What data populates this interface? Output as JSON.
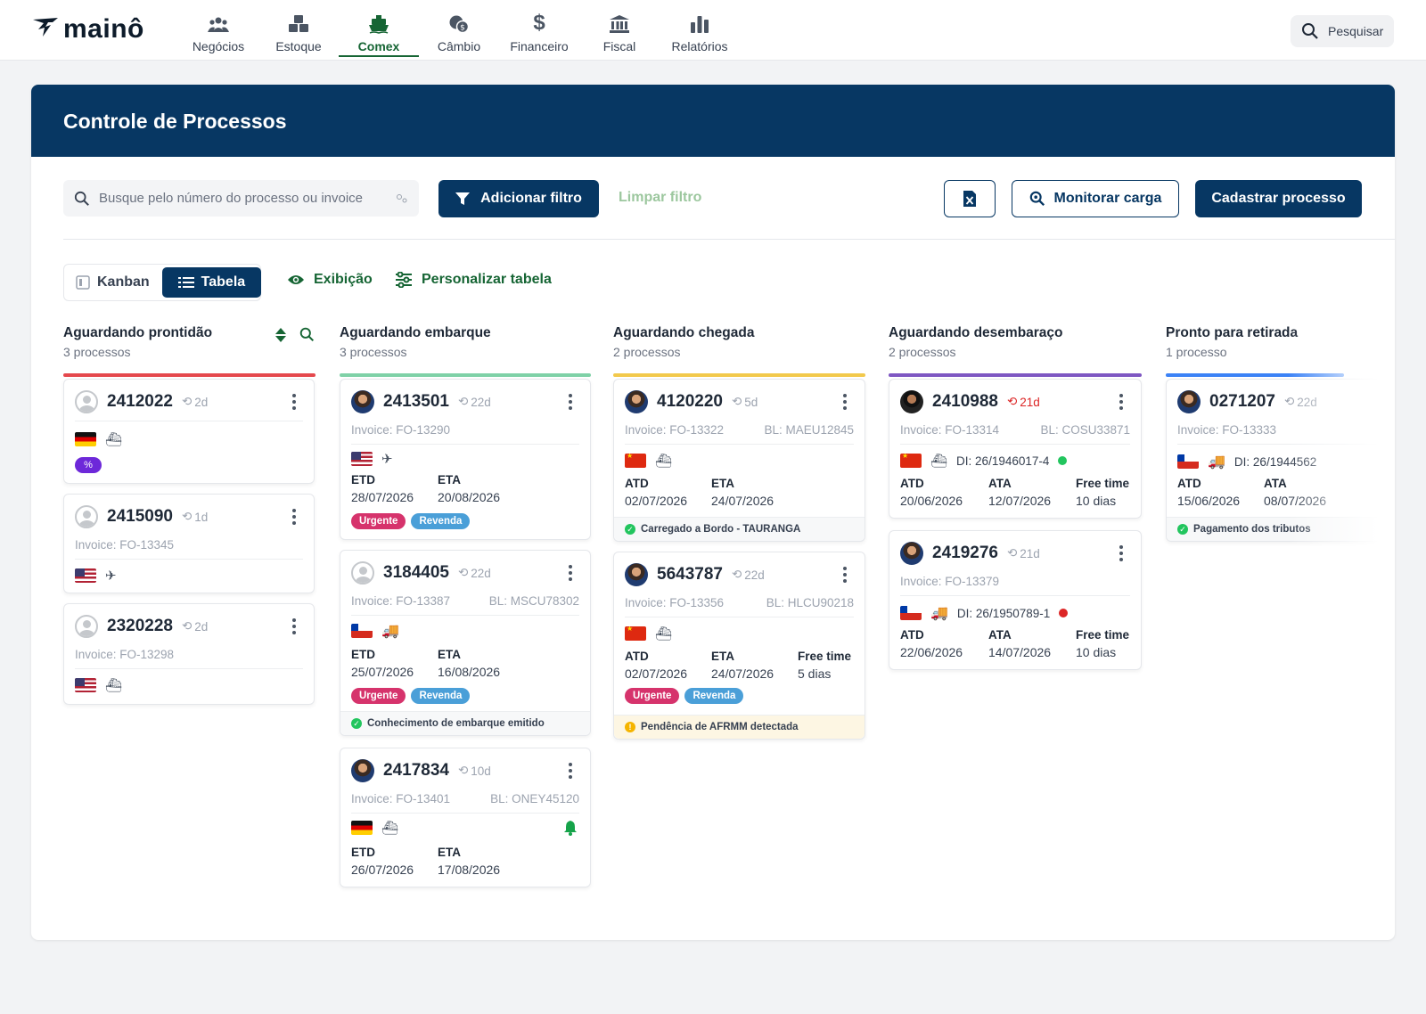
{
  "brand": {
    "name": "mainô"
  },
  "nav": [
    {
      "label": "Negócios",
      "icon": "users-icon"
    },
    {
      "label": "Estoque",
      "icon": "boxes-icon"
    },
    {
      "label": "Comex",
      "icon": "ship-icon",
      "active": true
    },
    {
      "label": "Câmbio",
      "icon": "coins-icon"
    },
    {
      "label": "Financeiro",
      "icon": "dollar-icon"
    },
    {
      "label": "Fiscal",
      "icon": "bank-icon"
    },
    {
      "label": "Relatórios",
      "icon": "bar-chart-icon"
    }
  ],
  "header_search": {
    "label": "Pesquisar"
  },
  "panel": {
    "title": "Controle de Processos"
  },
  "toolbar": {
    "search_placeholder": "Busque pelo número do processo ou invoice",
    "add_filter": "Adicionar filtro",
    "clear_filter": "Limpar filtro",
    "monitor": "Monitorar carga",
    "register": "Cadastrar processo"
  },
  "views": {
    "kanban": "Kanban",
    "table": "Tabela",
    "exhibit": "Exibição",
    "customize": "Personalizar tabela"
  },
  "columns": [
    {
      "title": "Aguardando prontidão",
      "count": "3 processos",
      "color": "#e5484d"
    },
    {
      "title": "Aguardando embarque",
      "count": "3 processos",
      "color": "#7fd1a7"
    },
    {
      "title": "Aguardando chegada",
      "count": "2 processos",
      "color": "#f2c94c"
    },
    {
      "title": "Aguardando desembaraço",
      "count": "2 processos",
      "color": "#7e57c2"
    },
    {
      "title": "Pronto para retirada",
      "count": "1 processo",
      "color": "#3b82f6"
    }
  ],
  "cards": {
    "c1": {
      "num": "2412022",
      "age": "2d"
    },
    "c2": {
      "num": "2415090",
      "age": "1d",
      "invoice": "Invoice: FO-13345"
    },
    "c3": {
      "num": "2320228",
      "age": "2d",
      "invoice": "Invoice: FO-13298"
    },
    "c4": {
      "num": "2413501",
      "age": "22d",
      "invoice": "Invoice: FO-13290",
      "l1": "ETD",
      "v1": "28/07/2026",
      "l2": "ETA",
      "v2": "20/08/2026"
    },
    "c5": {
      "num": "3184405",
      "age": "22d",
      "invoice": "Invoice: FO-13387",
      "bl": "BL: MSCU78302",
      "l1": "ETD",
      "v1": "25/07/2026",
      "l2": "ETA",
      "v2": "16/08/2026",
      "status": "Conhecimento de embarque emitido"
    },
    "c6": {
      "num": "2417834",
      "age": "10d",
      "invoice": "Invoice: FO-13401",
      "bl": "BL: ONEY45120",
      "l1": "ETD",
      "v1": "26/07/2026",
      "l2": "ETA",
      "v2": "17/08/2026"
    },
    "c7": {
      "num": "4120220",
      "age": "5d",
      "invoice": "Invoice: FO-13322",
      "bl": "BL: MAEU12845",
      "l1": "ATD",
      "v1": "02/07/2026",
      "l2": "ETA",
      "v2": "24/07/2026",
      "status": "Carregado a Bordo - TAURANGA"
    },
    "c8": {
      "num": "5643787",
      "age": "22d",
      "invoice": "Invoice: FO-13356",
      "bl": "BL: HLCU90218",
      "l1": "ATD",
      "v1": "02/07/2026",
      "l2": "ETA",
      "v2": "24/07/2026",
      "l3": "Free time",
      "v3": "5 dias",
      "status": "Pendência de AFRMM detectada"
    },
    "c9": {
      "num": "2410988",
      "age": "21d",
      "invoice": "Invoice: FO-13314",
      "bl": "BL: COSU33871",
      "di": "DI: 26/1946017-4",
      "l1": "ATD",
      "v1": "20/06/2026",
      "l2": "ATA",
      "v2": "12/07/2026",
      "l3": "Free time",
      "v3": "10 dias"
    },
    "c10": {
      "num": "2419276",
      "age": "21d",
      "invoice": "Invoice: FO-13379",
      "di": "DI: 26/1950789-1",
      "l1": "ATD",
      "v1": "22/06/2026",
      "l2": "ATA",
      "v2": "14/07/2026",
      "l3": "Free time",
      "v3": "10 dias"
    },
    "c11": {
      "num": "0271207",
      "age": "22d",
      "invoice": "Invoice: FO-13333",
      "di": "DI: 26/1944562",
      "l1": "ATD",
      "v1": "15/06/2026",
      "l2": "ATA",
      "v2": "08/07/2026",
      "status": "Pagamento dos tributos"
    }
  },
  "tags": {
    "urgent": "Urgente",
    "resale": "Revenda"
  }
}
